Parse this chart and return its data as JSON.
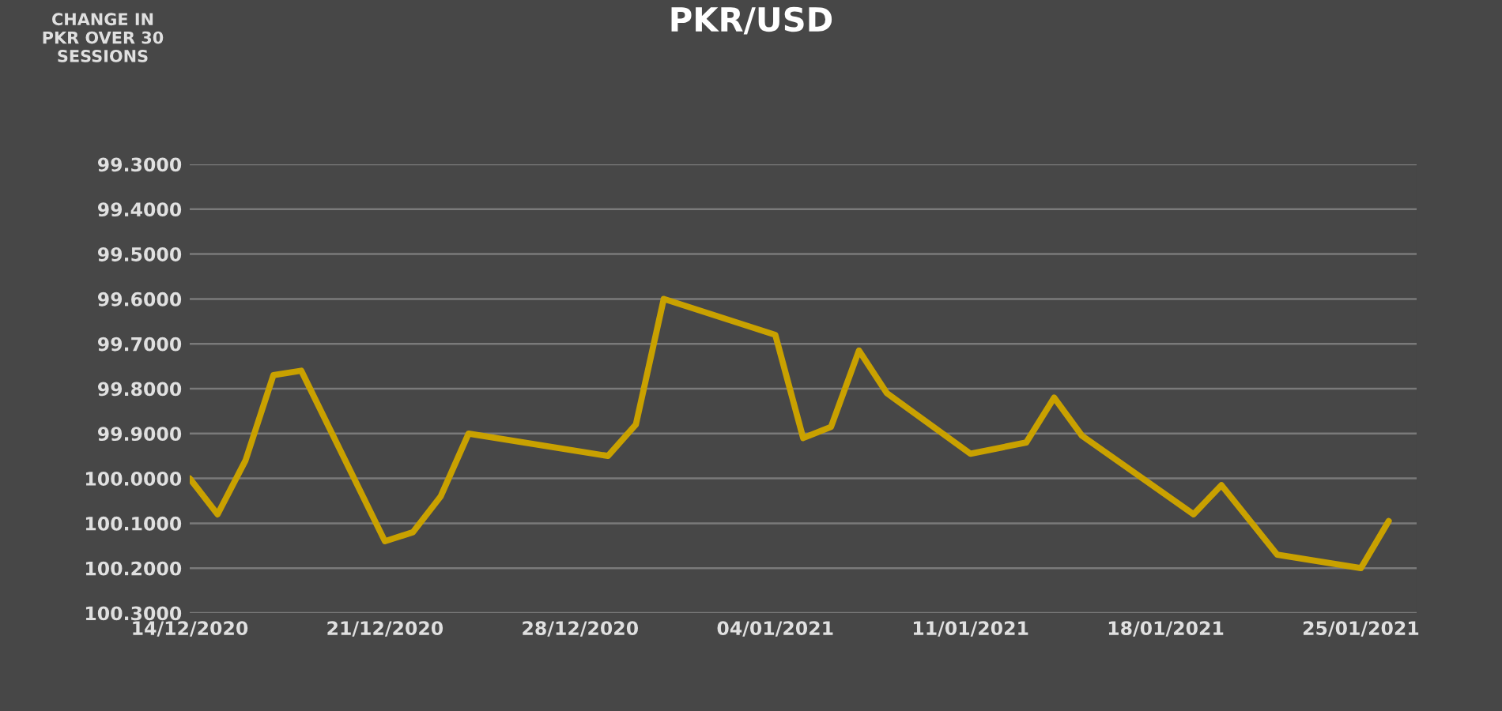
{
  "chart_data": {
    "type": "line",
    "title": "PKR/USD",
    "annotations": [
      "CHANGE IN\nPKR OVER 30\nSESSIONS"
    ],
    "x": [
      "2020-12-14",
      "2020-12-15",
      "2020-12-16",
      "2020-12-17",
      "2020-12-18",
      "2020-12-21",
      "2020-12-22",
      "2020-12-23",
      "2020-12-24",
      "2020-12-29",
      "2020-12-30",
      "2020-12-31",
      "2021-01-04",
      "2021-01-05",
      "2021-01-06",
      "2021-01-07",
      "2021-01-08",
      "2021-01-11",
      "2021-01-13",
      "2021-01-14",
      "2021-01-15",
      "2021-01-19",
      "2021-01-20",
      "2021-01-22",
      "2021-01-25",
      "2021-01-26"
    ],
    "series": [
      {
        "color": "#c9a100",
        "values": [
          100.0,
          100.08,
          99.96,
          99.77,
          99.76,
          100.14,
          100.12,
          100.04,
          99.9,
          99.95,
          99.88,
          99.6,
          99.68,
          99.91,
          99.885,
          99.715,
          99.81,
          99.945,
          99.92,
          99.82,
          99.905,
          100.08,
          100.015,
          100.17,
          100.2,
          100.095
        ]
      }
    ],
    "xlim": [
      "2020-12-14",
      "2021-01-27"
    ],
    "xticks": [
      {
        "value": "2020-12-14",
        "label": "14/12/2020"
      },
      {
        "value": "2020-12-21",
        "label": "21/12/2020"
      },
      {
        "value": "2020-12-28",
        "label": "28/12/2020"
      },
      {
        "value": "2021-01-04",
        "label": "04/01/2021"
      },
      {
        "value": "2021-01-11",
        "label": "11/01/2021"
      },
      {
        "value": "2021-01-18",
        "label": "18/01/2021"
      },
      {
        "value": "2021-01-25",
        "label": "25/01/2021"
      }
    ],
    "ylim": [
      100.3,
      99.3
    ],
    "yticks": [
      {
        "value": 99.3,
        "label": "99.3000"
      },
      {
        "value": 99.4,
        "label": "99.4000"
      },
      {
        "value": 99.5,
        "label": "99.5000"
      },
      {
        "value": 99.6,
        "label": "99.6000"
      },
      {
        "value": 99.7,
        "label": "99.7000"
      },
      {
        "value": 99.8,
        "label": "99.8000"
      },
      {
        "value": 99.9,
        "label": "99.9000"
      },
      {
        "value": 100.0,
        "label": "100.0000"
      },
      {
        "value": 100.1,
        "label": "100.1000"
      },
      {
        "value": 100.2,
        "label": "100.2000"
      },
      {
        "value": 100.3,
        "label": "100.3000"
      }
    ],
    "grid": "y",
    "marker": "none",
    "line_style": "solid"
  }
}
